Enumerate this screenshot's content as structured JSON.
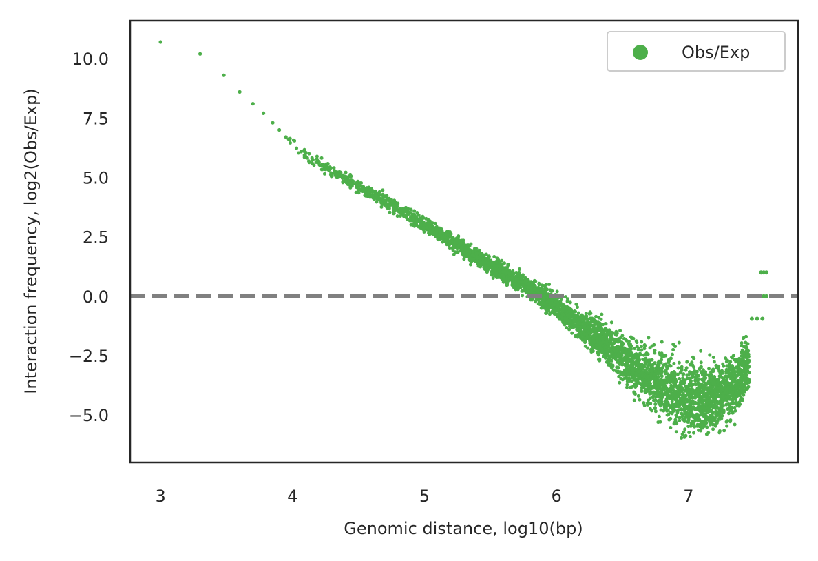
{
  "chart_data": {
    "type": "scatter",
    "title": "",
    "xlabel": "Genomic distance, log10(bp)",
    "ylabel": "Interaction frequency, log2(Obs/Exp)",
    "xlim": [
      2.77,
      7.83
    ],
    "ylim": [
      -7.0,
      11.6
    ],
    "x_ticks": [
      3,
      4,
      5,
      6,
      7
    ],
    "x_tick_labels": [
      "3",
      "4",
      "5",
      "6",
      "7"
    ],
    "y_ticks": [
      -5.0,
      -2.5,
      0.0,
      2.5,
      5.0,
      7.5,
      10.0
    ],
    "y_tick_labels": [
      "−5.0",
      "−2.5",
      "0.0",
      "2.5",
      "5.0",
      "7.5",
      "10.0"
    ],
    "grid": false,
    "legend_position": "top-right",
    "series": [
      {
        "name": "Obs/Exp",
        "color": "#4daf4a",
        "trend": {
          "x": [
            3.0,
            3.3,
            3.48,
            3.6,
            3.7,
            3.78,
            3.85,
            3.9,
            3.95,
            4.0,
            4.1,
            4.2,
            4.4,
            4.6,
            4.8,
            5.0,
            5.2,
            5.4,
            5.6,
            5.8,
            6.0,
            6.2,
            6.4,
            6.6,
            6.8,
            7.0,
            7.2,
            7.35,
            7.45
          ],
          "y": [
            10.7,
            10.2,
            9.3,
            8.6,
            8.1,
            7.7,
            7.3,
            7.0,
            6.7,
            6.5,
            6.0,
            5.6,
            4.9,
            4.3,
            3.7,
            3.0,
            2.3,
            1.6,
            1.0,
            0.3,
            -0.4,
            -1.3,
            -2.1,
            -3.0,
            -3.8,
            -4.3,
            -4.2,
            -3.7,
            -3.0
          ]
        },
        "spread": {
          "x": [
            4.0,
            5.0,
            5.8,
            6.2,
            6.6,
            6.8,
            7.0,
            7.2,
            7.4,
            7.5
          ],
          "y": [
            0.3,
            0.4,
            0.5,
            0.8,
            1.4,
            1.7,
            1.9,
            1.8,
            1.7,
            1.4
          ]
        },
        "outliers": [
          [
            7.55,
            1.0
          ],
          [
            7.57,
            1.0
          ],
          [
            7.59,
            1.0
          ],
          [
            7.55,
            0.0
          ],
          [
            7.57,
            0.0
          ],
          [
            7.59,
            0.0
          ],
          [
            7.48,
            -0.95
          ],
          [
            7.52,
            -0.95
          ],
          [
            7.56,
            -0.95
          ]
        ]
      }
    ],
    "reference_line": {
      "y": 0.0,
      "style": "dashed",
      "color": "#808080"
    }
  }
}
